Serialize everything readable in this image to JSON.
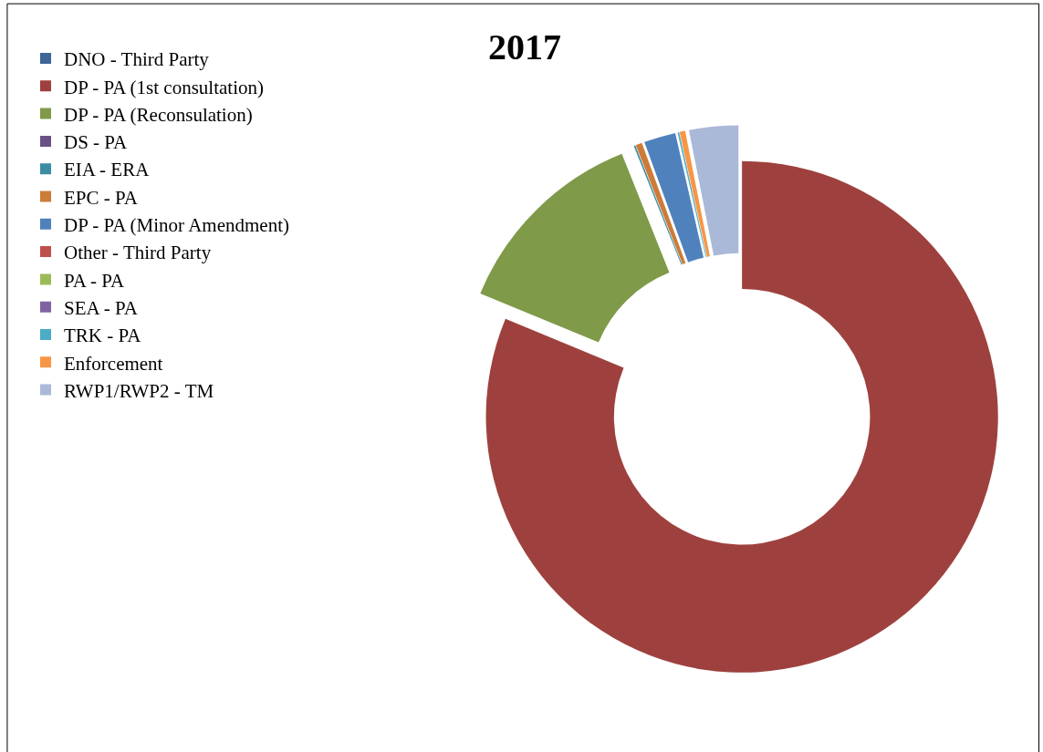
{
  "chart_data": {
    "type": "donut",
    "title": "2017",
    "legend": "left",
    "categories": [
      "DNO - Third Party",
      "DP - PA (1st consultation)",
      "DP - PA (Reconsulation)",
      "DS - PA",
      "EIA - ERA",
      "EPC - PA",
      "DP - PA (Minor Amendment)",
      "Other - Third Party",
      "PA - PA",
      "SEA - PA",
      "TRK - PA",
      "Enforcement",
      "RWP1/RWP2 - TM"
    ],
    "values": [
      0,
      81.25,
      12.7,
      0,
      0.1,
      0.4,
      2.0,
      0,
      0,
      0,
      0.1,
      0.35,
      3.1
    ],
    "colors": [
      "#3f6599",
      "#9e413e",
      "#7f9a48",
      "#695185",
      "#3c8da3",
      "#cc7b38",
      "#4f81bd",
      "#c0504d",
      "#9bbb59",
      "#8064a2",
      "#4bacc6",
      "#f79646",
      "#aab9d7"
    ]
  }
}
